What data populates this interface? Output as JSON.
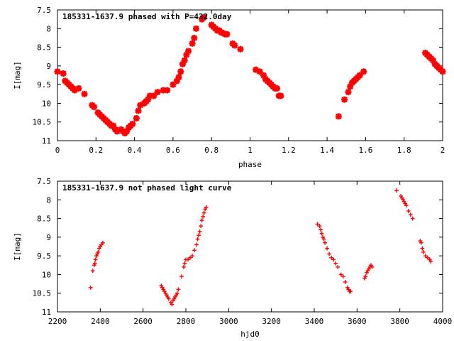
{
  "chart_data": [
    {
      "type": "scatter",
      "title": "185331-1637.9 phased with P=432.0day",
      "xlabel": "phase",
      "ylabel": "I[mag]",
      "xlim": [
        0,
        2
      ],
      "ylim": [
        7.5,
        11
      ],
      "y_inverted": true,
      "xticks": [
        "0",
        "0.2",
        "0.4",
        "0.6",
        "0.8",
        "1",
        "1.2",
        "1.4",
        "1.6",
        "1.8",
        "2"
      ],
      "yticks": [
        "7.5",
        "8",
        "8.5",
        "9",
        "9.5",
        "10",
        "10.5",
        "11"
      ],
      "marker": "filled-cross",
      "color": "#ff0000",
      "series": [
        {
          "x": [
            0.0,
            0.03,
            0.04,
            0.05,
            0.06,
            0.07,
            0.08,
            0.09,
            0.11,
            0.14,
            0.18,
            0.19,
            0.21,
            0.22,
            0.23,
            0.24,
            0.25,
            0.26,
            0.27,
            0.28,
            0.29,
            0.3,
            0.31,
            0.33,
            0.34,
            0.35,
            0.36,
            0.37,
            0.38,
            0.39,
            0.41,
            0.42,
            0.43,
            0.45,
            0.46,
            0.47,
            0.48,
            0.5,
            0.52,
            0.55,
            0.57,
            0.6,
            0.62,
            0.63,
            0.64,
            0.65,
            0.66,
            0.67,
            0.68,
            0.7,
            0.71,
            0.72,
            0.75,
            0.76,
            0.8,
            0.81,
            0.82,
            0.83,
            0.84,
            0.85,
            0.86,
            0.87,
            0.88,
            0.91,
            0.92,
            0.95,
            1.03,
            1.05,
            1.07,
            1.08,
            1.09,
            1.1,
            1.11,
            1.12,
            1.13,
            1.14,
            1.15,
            1.16,
            1.46,
            1.49,
            1.51,
            1.52,
            1.53,
            1.54,
            1.55,
            1.56,
            1.57,
            1.59,
            1.91,
            1.92,
            1.93,
            1.94,
            1.95,
            1.96,
            1.97,
            1.98,
            1.99,
            2.0
          ],
          "y": [
            9.15,
            9.2,
            9.4,
            9.45,
            9.5,
            9.55,
            9.6,
            9.65,
            9.6,
            9.75,
            10.05,
            10.1,
            10.25,
            10.3,
            10.35,
            10.4,
            10.45,
            10.5,
            10.55,
            10.6,
            10.6,
            10.7,
            10.75,
            10.7,
            10.75,
            10.8,
            10.75,
            10.65,
            10.6,
            10.55,
            10.4,
            10.2,
            10.05,
            10.0,
            9.95,
            9.9,
            9.8,
            9.8,
            9.7,
            9.65,
            9.65,
            9.5,
            9.4,
            9.3,
            9.15,
            8.95,
            8.85,
            8.7,
            8.6,
            8.4,
            8.25,
            8.0,
            7.75,
            7.7,
            7.9,
            7.95,
            8.0,
            8.05,
            8.05,
            8.1,
            8.12,
            8.15,
            8.15,
            8.4,
            8.45,
            8.55,
            9.1,
            9.15,
            9.25,
            9.35,
            9.4,
            9.45,
            9.5,
            9.55,
            9.6,
            9.6,
            9.8,
            9.8,
            10.35,
            9.9,
            9.7,
            9.55,
            9.45,
            9.4,
            9.35,
            9.3,
            9.25,
            9.15,
            8.65,
            8.7,
            8.75,
            8.8,
            8.85,
            8.95,
            9.0,
            9.05,
            9.1,
            9.15
          ]
        }
      ]
    },
    {
      "type": "scatter",
      "title": "185331-1637.9 not phased light curve",
      "xlabel": "hjd0",
      "ylabel": "I[mag]",
      "xlim": [
        2200,
        4000
      ],
      "ylim": [
        7.5,
        11
      ],
      "y_inverted": true,
      "xticks": [
        "2200",
        "2400",
        "2600",
        "2800",
        "3000",
        "3200",
        "3400",
        "3600",
        "3800",
        "4000"
      ],
      "yticks": [
        "7.5",
        "8",
        "8.5",
        "9",
        "9.5",
        "10",
        "10.5",
        "11"
      ],
      "marker": "small-cross",
      "color": "#ff0000",
      "series": [
        {
          "x": [
            2355,
            2365,
            2372,
            2375,
            2378,
            2382,
            2386,
            2390,
            2395,
            2400,
            2405,
            2412,
            2685,
            2690,
            2695,
            2700,
            2705,
            2710,
            2715,
            2720,
            2730,
            2735,
            2740,
            2745,
            2750,
            2755,
            2760,
            2765,
            2780,
            2790,
            2795,
            2800,
            2810,
            2820,
            2830,
            2840,
            2850,
            2855,
            2860,
            2865,
            2870,
            2875,
            2880,
            2885,
            2890,
            2895,
            3415,
            3425,
            3430,
            3435,
            3440,
            3445,
            3450,
            3460,
            3470,
            3480,
            3490,
            3500,
            3510,
            3525,
            3535,
            3545,
            3555,
            3560,
            3565,
            3570,
            3635,
            3640,
            3645,
            3650,
            3655,
            3660,
            3665,
            3670,
            3785,
            3805,
            3810,
            3815,
            3820,
            3825,
            3830,
            3840,
            3850,
            3860,
            3895,
            3900,
            3905,
            3910,
            3920,
            3930,
            3940,
            3945
          ],
          "y": [
            10.35,
            9.9,
            9.75,
            9.7,
            9.6,
            9.5,
            9.45,
            9.4,
            9.3,
            9.25,
            9.2,
            9.15,
            10.3,
            10.35,
            10.4,
            10.45,
            10.5,
            10.55,
            10.6,
            10.65,
            10.75,
            10.8,
            10.7,
            10.65,
            10.6,
            10.55,
            10.5,
            10.4,
            10.05,
            9.8,
            9.7,
            9.6,
            9.6,
            9.55,
            9.5,
            9.35,
            9.2,
            9.05,
            8.95,
            8.85,
            8.7,
            8.55,
            8.45,
            8.35,
            8.25,
            8.2,
            8.65,
            8.7,
            8.8,
            8.9,
            9.0,
            9.05,
            9.15,
            9.3,
            9.45,
            9.55,
            9.6,
            9.7,
            9.8,
            10.0,
            10.05,
            10.2,
            10.35,
            10.4,
            10.45,
            10.45,
            10.1,
            10.05,
            9.95,
            9.9,
            9.85,
            9.8,
            9.75,
            9.8,
            7.75,
            7.9,
            7.95,
            8.0,
            8.05,
            8.1,
            8.15,
            8.3,
            8.4,
            8.5,
            9.1,
            9.15,
            9.3,
            9.4,
            9.5,
            9.55,
            9.6,
            9.65
          ]
        }
      ]
    }
  ]
}
